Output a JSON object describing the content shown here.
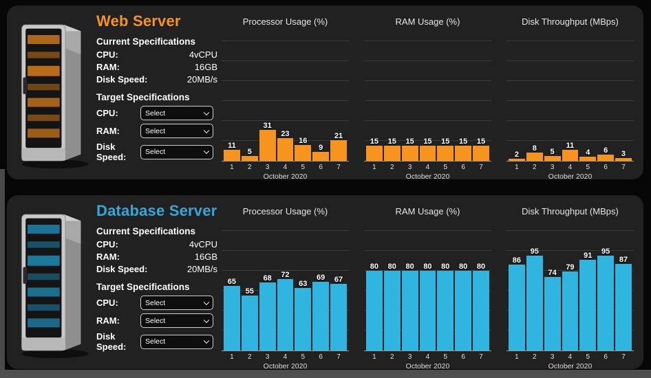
{
  "page": {
    "background_color": "#060606",
    "panel_color": "#212121",
    "frame_color": "#4e4e4e"
  },
  "panels": [
    {
      "title": "Web Server",
      "accent": "#f7941e",
      "current_heading": "Current Specifications",
      "current_specs": [
        {
          "label": "CPU:",
          "value": "4vCPU"
        },
        {
          "label": "RAM:",
          "value": "16GB"
        },
        {
          "label": "Disk Speed:",
          "value": "20MB/s"
        }
      ],
      "target_heading": "Target Specifications",
      "target_specs": [
        {
          "label": "CPU:",
          "selected": "Select"
        },
        {
          "label": "RAM:",
          "selected": "Select"
        },
        {
          "label": "Disk Speed:",
          "selected": "Select"
        }
      ]
    },
    {
      "title": "Database Server",
      "accent": "#35a8d8",
      "current_heading": "Current Specifications",
      "current_specs": [
        {
          "label": "CPU:",
          "value": "4vCPU"
        },
        {
          "label": "RAM:",
          "value": "16GB"
        },
        {
          "label": "Disk Speed:",
          "value": "20MB/s"
        }
      ],
      "target_heading": "Target Specifications",
      "target_specs": [
        {
          "label": "CPU:",
          "selected": "Select"
        },
        {
          "label": "RAM:",
          "selected": "Select"
        },
        {
          "label": "Disk Speed:",
          "selected": "Select"
        }
      ]
    }
  ],
  "chart_data": [
    {
      "type": "bar",
      "panel": "Web Server",
      "title": "Processor Usage (%)",
      "categories": [
        "1",
        "2",
        "3",
        "4",
        "5",
        "6",
        "7"
      ],
      "values": [
        11,
        5,
        31,
        23,
        16,
        9,
        21
      ],
      "xlabel": "October 2020",
      "ylabel": "",
      "ylim": [
        0,
        120
      ],
      "grid_step": 20,
      "grid": true,
      "bar_color": "#f7941e"
    },
    {
      "type": "bar",
      "panel": "Web Server",
      "title": "RAM Usage (%)",
      "categories": [
        "1",
        "2",
        "3",
        "4",
        "5",
        "6",
        "7"
      ],
      "values": [
        15,
        15,
        15,
        15,
        15,
        15,
        15
      ],
      "xlabel": "October 2020",
      "ylabel": "",
      "ylim": [
        0,
        120
      ],
      "grid_step": 20,
      "grid": true,
      "bar_color": "#f7941e"
    },
    {
      "type": "bar",
      "panel": "Web Server",
      "title": "Disk Throughput (MBps)",
      "categories": [
        "1",
        "2",
        "3",
        "4",
        "5",
        "6",
        "7"
      ],
      "values": [
        2,
        8,
        5,
        11,
        4,
        6,
        3
      ],
      "xlabel": "October 2020",
      "ylabel": "",
      "ylim": [
        0,
        120
      ],
      "grid_step": 20,
      "grid": true,
      "bar_color": "#f7941e"
    },
    {
      "type": "bar",
      "panel": "Database Server",
      "title": "Processor Usage (%)",
      "categories": [
        "1",
        "2",
        "3",
        "4",
        "5",
        "6",
        "7"
      ],
      "values": [
        65,
        55,
        68,
        72,
        63,
        69,
        67
      ],
      "xlabel": "October 2020",
      "ylabel": "",
      "ylim": [
        0,
        120
      ],
      "grid_step": 20,
      "grid": true,
      "bar_color": "#30b4e0"
    },
    {
      "type": "bar",
      "panel": "Database Server",
      "title": "RAM Usage (%)",
      "categories": [
        "1",
        "2",
        "3",
        "4",
        "5",
        "6",
        "7"
      ],
      "values": [
        80,
        80,
        80,
        80,
        80,
        80,
        80
      ],
      "xlabel": "October 2020",
      "ylabel": "",
      "ylim": [
        0,
        120
      ],
      "grid_step": 20,
      "grid": true,
      "bar_color": "#30b4e0"
    },
    {
      "type": "bar",
      "panel": "Database Server",
      "title": "Disk Throughput (MBps)",
      "categories": [
        "1",
        "2",
        "3",
        "4",
        "5",
        "6",
        "7"
      ],
      "values": [
        86,
        95,
        74,
        79,
        91,
        95,
        87
      ],
      "xlabel": "October 2020",
      "ylabel": "",
      "ylim": [
        0,
        120
      ],
      "grid_step": 20,
      "grid": true,
      "bar_color": "#30b4e0"
    }
  ]
}
